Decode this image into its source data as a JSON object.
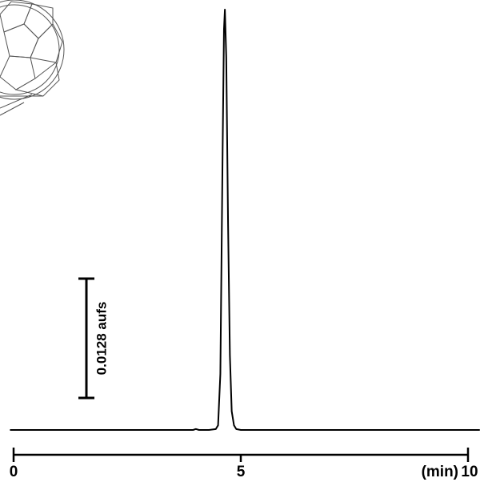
{
  "chart_data": {
    "type": "line",
    "x_label": "(min)",
    "x": [
      -0.08,
      1,
      2,
      3,
      3.5,
      3.95,
      4.01,
      4.08,
      4.3,
      4.45,
      4.5,
      4.55,
      4.6,
      4.63,
      4.65,
      4.68,
      4.72,
      4.76,
      4.8,
      4.85,
      4.9,
      5.0,
      6,
      7,
      8,
      9,
      10.26
    ],
    "values": [
      0,
      0,
      0,
      0,
      0,
      0,
      0.0001,
      0,
      0,
      0.0001,
      0.0005,
      0.006,
      0.03,
      0.043,
      0.0451,
      0.04,
      0.022,
      0.008,
      0.002,
      0.0005,
      0.0001,
      0,
      0,
      0,
      0,
      0,
      0
    ],
    "color": "#000000",
    "xlim": [
      0,
      10
    ],
    "xticks": [
      0,
      5,
      10
    ],
    "ylim": [
      0,
      0.046
    ],
    "scale_bar": {
      "value": 0.0128,
      "label": "0.0128 aufs"
    }
  }
}
